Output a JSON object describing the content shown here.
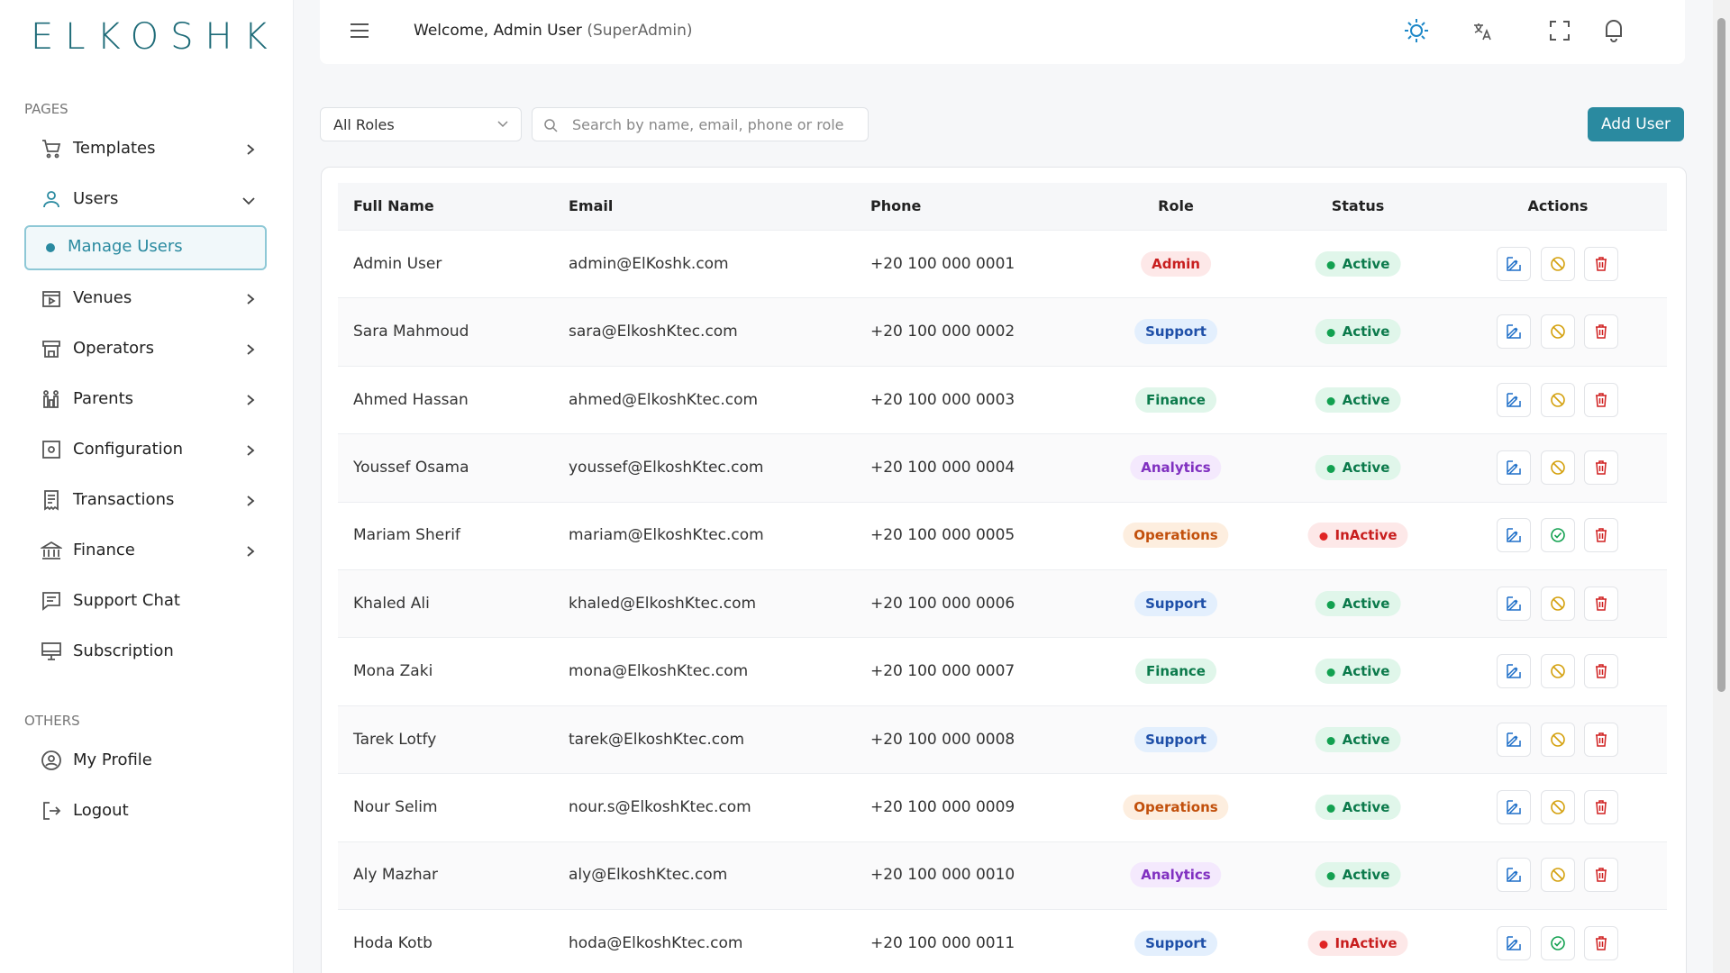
{
  "logo": "ELKOSHK",
  "header": {
    "welcome": "Welcome, Admin User",
    "role": "(SuperAdmin)"
  },
  "sidebar": {
    "sections": [
      {
        "title": "PAGES",
        "items": [
          {
            "label": "Templates",
            "icon": "cart",
            "submenu": true
          },
          {
            "label": "Users",
            "icon": "user",
            "submenu": true,
            "expanded": true,
            "children": [
              {
                "label": "Manage Users",
                "active": true
              }
            ]
          },
          {
            "label": "Venues",
            "icon": "venue",
            "submenu": true
          },
          {
            "label": "Operators",
            "icon": "store",
            "submenu": true
          },
          {
            "label": "Parents",
            "icon": "family",
            "submenu": true
          },
          {
            "label": "Configuration",
            "icon": "config",
            "submenu": true
          },
          {
            "label": "Transactions",
            "icon": "receipt",
            "submenu": true
          },
          {
            "label": "Finance",
            "icon": "bank",
            "submenu": true
          },
          {
            "label": "Support Chat",
            "icon": "chat",
            "submenu": false
          },
          {
            "label": "Subscription",
            "icon": "monitor",
            "submenu": false
          }
        ]
      },
      {
        "title": "OTHERS",
        "items": [
          {
            "label": "My Profile",
            "icon": "profile",
            "submenu": false
          },
          {
            "label": "Logout",
            "icon": "logout",
            "submenu": false
          }
        ]
      }
    ]
  },
  "toolbar": {
    "role_filter": "All Roles",
    "search_placeholder": "Search by name, email, phone or role",
    "add_button": "Add User"
  },
  "table": {
    "columns": [
      "Full Name",
      "Email",
      "Phone",
      "Role",
      "Status",
      "Actions"
    ],
    "rows": [
      [
        "Admin User",
        "admin@ElKoshk.com",
        "+20 100 000 0001",
        "Admin",
        "Active"
      ],
      [
        "Sara Mahmoud",
        "sara@ElkoshKtec.com",
        "+20 100 000 0002",
        "Support",
        "Active"
      ],
      [
        "Ahmed Hassan",
        "ahmed@ElkoshKtec.com",
        "+20 100 000 0003",
        "Finance",
        "Active"
      ],
      [
        "Youssef Osama",
        "youssef@ElkoshKtec.com",
        "+20 100 000 0004",
        "Analytics",
        "Active"
      ],
      [
        "Mariam Sherif",
        "mariam@ElkoshKtec.com",
        "+20 100 000 0005",
        "Operations",
        "InActive"
      ],
      [
        "Khaled Ali",
        "khaled@ElkoshKtec.com",
        "+20 100 000 0006",
        "Support",
        "Active"
      ],
      [
        "Mona Zaki",
        "mona@ElkoshKtec.com",
        "+20 100 000 0007",
        "Finance",
        "Active"
      ],
      [
        "Tarek Lotfy",
        "tarek@ElkoshKtec.com",
        "+20 100 000 0008",
        "Support",
        "Active"
      ],
      [
        "Nour Selim",
        "nour.s@ElkoshKtec.com",
        "+20 100 000 0009",
        "Operations",
        "Active"
      ],
      [
        "Aly Mazhar",
        "aly@ElkoshKtec.com",
        "+20 100 000 0010",
        "Analytics",
        "Active"
      ],
      [
        "Hoda Kotb",
        "hoda@ElkoshKtec.com",
        "+20 100 000 0011",
        "Support",
        "InActive"
      ]
    ]
  }
}
